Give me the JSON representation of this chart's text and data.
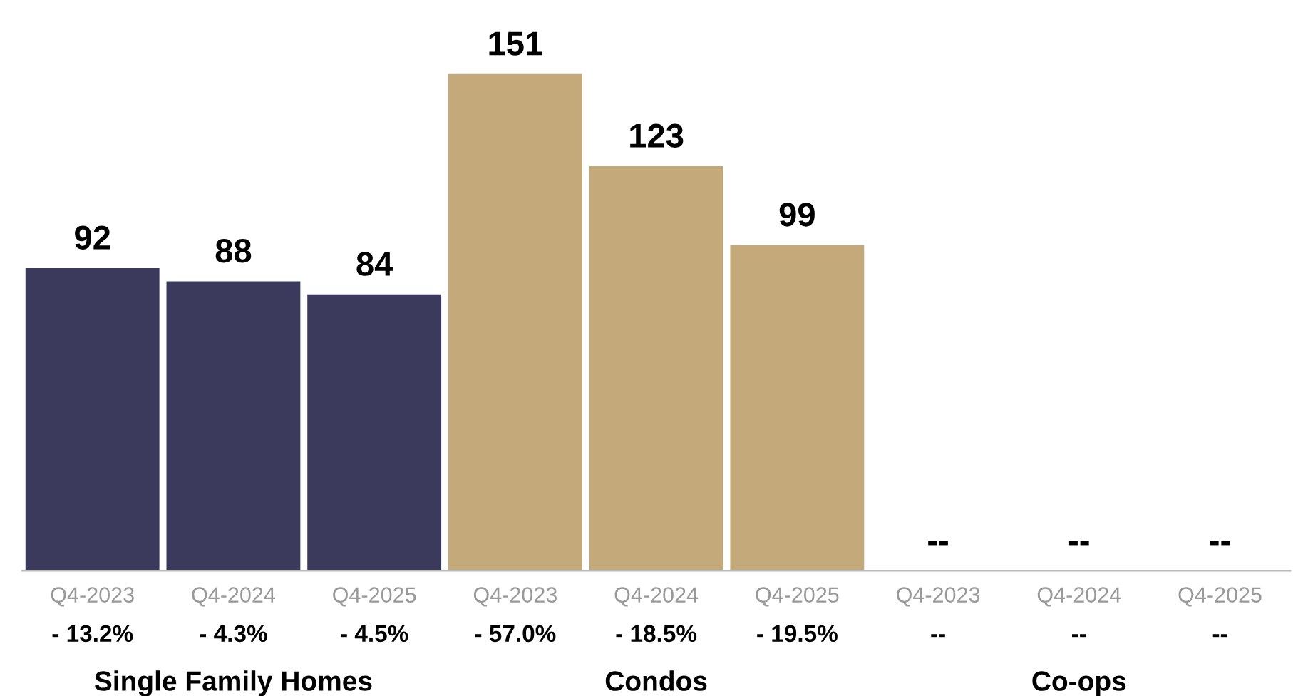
{
  "chart_data": {
    "type": "bar",
    "categories": [
      "Q4-2023",
      "Q4-2024",
      "Q4-2025",
      "Q4-2023",
      "Q4-2024",
      "Q4-2025",
      "Q4-2023",
      "Q4-2024",
      "Q4-2025"
    ],
    "values": [
      92,
      88,
      84,
      151,
      123,
      99,
      null,
      null,
      null
    ],
    "colors": [
      "#3b3a5c",
      "#3b3a5c",
      "#3b3a5c",
      "#c4a97a",
      "#c4a97a",
      "#c4a97a",
      "#c4a97a",
      "#c4a97a",
      "#c4a97a"
    ],
    "value_labels": [
      "92",
      "88",
      "84",
      "151",
      "123",
      "99",
      "--",
      "--",
      "--"
    ],
    "annotations": [
      "- 13.2%",
      "- 4.3%",
      "- 4.5%",
      "- 57.0%",
      "- 18.5%",
      "- 19.5%",
      "--",
      "--",
      "--",
      "Single Family Homes",
      "Condos",
      "Co-ops"
    ],
    "grid": false,
    "legend": false
  }
}
